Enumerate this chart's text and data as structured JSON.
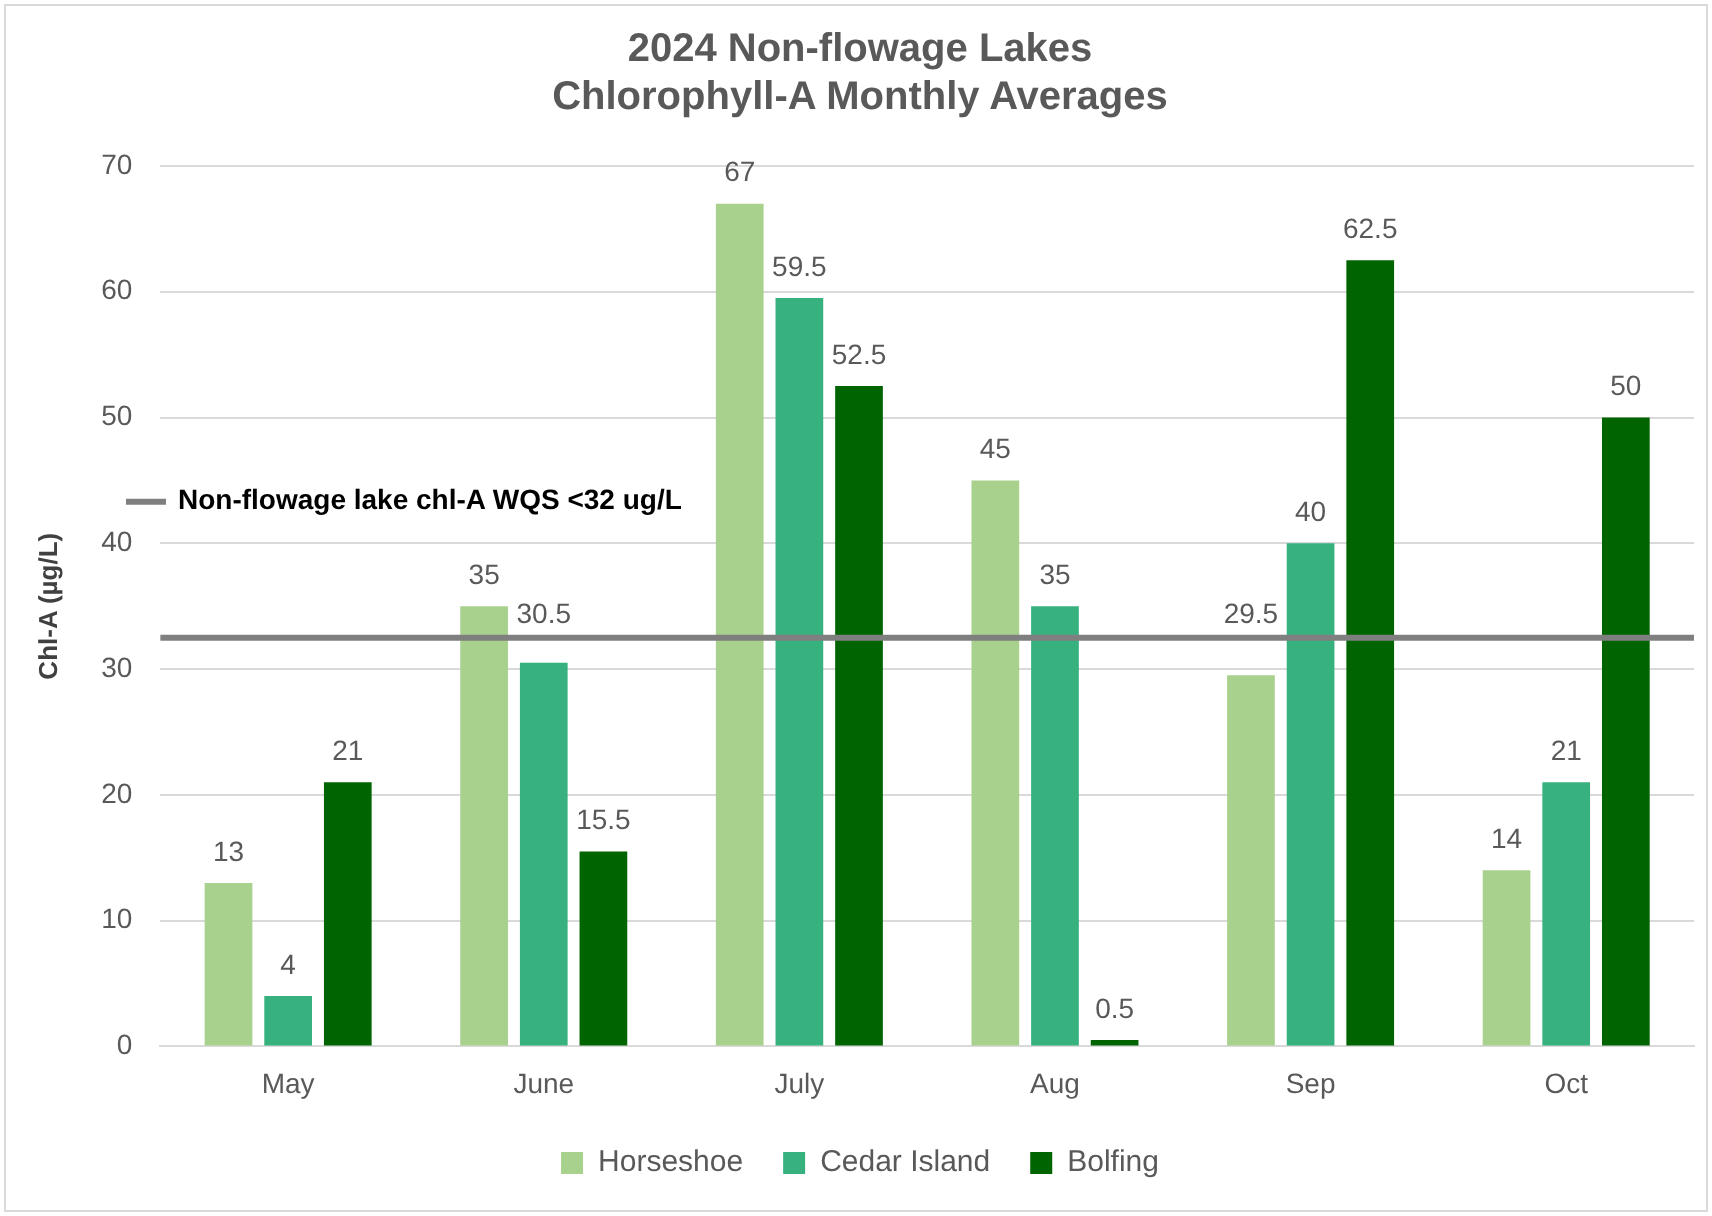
{
  "chart_data": {
    "type": "bar",
    "title": "2024 Non-flowage Lakes\nChlorophyll-A Monthly Averages",
    "ylabel": "Chl-A (µg/L)",
    "categories": [
      "May",
      "June",
      "July",
      "Aug",
      "Sep",
      "Oct"
    ],
    "series": [
      {
        "name": "Horseshoe",
        "color": "#a9d18e",
        "values": [
          13,
          35,
          67,
          45,
          29.5,
          14
        ]
      },
      {
        "name": "Cedar Island",
        "color": "#37b27f",
        "values": [
          4,
          30.5,
          59.5,
          35,
          40,
          21
        ]
      },
      {
        "name": "Bolfing",
        "color": "#006400",
        "values": [
          21,
          15.5,
          52.5,
          0.5,
          62.5,
          50
        ]
      }
    ],
    "ylim": [
      0,
      70
    ],
    "yticks": [
      0,
      10,
      20,
      30,
      40,
      50,
      60,
      70
    ],
    "grid": "y",
    "legend": "bottom",
    "data_labels": true,
    "ref_lines": [
      {
        "axis": "y",
        "value": 32.5,
        "label": "Non-flowage lake chl-A WQS <32 ug/L",
        "color": "#7f7f7f"
      }
    ]
  }
}
